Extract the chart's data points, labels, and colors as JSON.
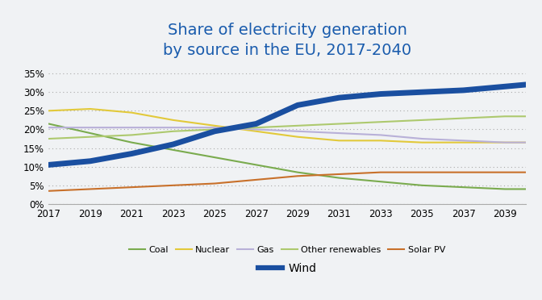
{
  "title": "Share of electricity generation\nby source in the EU, 2017-2040",
  "title_color": "#1a5cad",
  "background_color": "#f0f2f4",
  "plot_bg_color": "#f0f2f4",
  "years": [
    2017,
    2019,
    2021,
    2023,
    2025,
    2027,
    2029,
    2031,
    2033,
    2035,
    2037,
    2039,
    2040
  ],
  "series": {
    "Wind": {
      "color": "#1a4fa0",
      "linewidth": 5.0,
      "data": [
        10.5,
        11.5,
        13.5,
        16.0,
        19.5,
        21.5,
        26.5,
        28.5,
        29.5,
        30.0,
        30.5,
        31.5,
        32.0
      ]
    },
    "Coal": {
      "color": "#7aab4e",
      "linewidth": 1.5,
      "data": [
        21.5,
        19.0,
        16.5,
        14.5,
        12.5,
        10.5,
        8.5,
        7.0,
        6.0,
        5.0,
        4.5,
        4.0,
        4.0
      ]
    },
    "Nuclear": {
      "color": "#e2c93a",
      "linewidth": 1.5,
      "data": [
        25.0,
        25.5,
        24.5,
        22.5,
        21.0,
        19.5,
        18.0,
        17.0,
        17.0,
        16.5,
        16.5,
        16.5,
        16.5
      ]
    },
    "Gas": {
      "color": "#b8b0d8",
      "linewidth": 1.5,
      "data": [
        20.5,
        20.5,
        20.5,
        20.5,
        20.5,
        20.0,
        19.5,
        19.0,
        18.5,
        17.5,
        17.0,
        16.5,
        16.5
      ]
    },
    "Other renewables": {
      "color": "#adc96e",
      "linewidth": 1.5,
      "data": [
        17.5,
        18.0,
        18.5,
        19.5,
        20.0,
        20.5,
        21.0,
        21.5,
        22.0,
        22.5,
        23.0,
        23.5,
        23.5
      ]
    },
    "Solar PV": {
      "color": "#c8702a",
      "linewidth": 1.5,
      "data": [
        3.5,
        4.0,
        4.5,
        5.0,
        5.5,
        6.5,
        7.5,
        8.0,
        8.5,
        8.5,
        8.5,
        8.5,
        8.5
      ]
    }
  },
  "xticks": [
    2017,
    2019,
    2021,
    2023,
    2025,
    2027,
    2029,
    2031,
    2033,
    2035,
    2037,
    2039
  ],
  "yticks": [
    0,
    5,
    10,
    15,
    20,
    25,
    30,
    35
  ],
  "ylim": [
    0,
    37
  ],
  "xlim": [
    2017,
    2040
  ],
  "title_fontsize": 14,
  "tick_fontsize": 8.5
}
